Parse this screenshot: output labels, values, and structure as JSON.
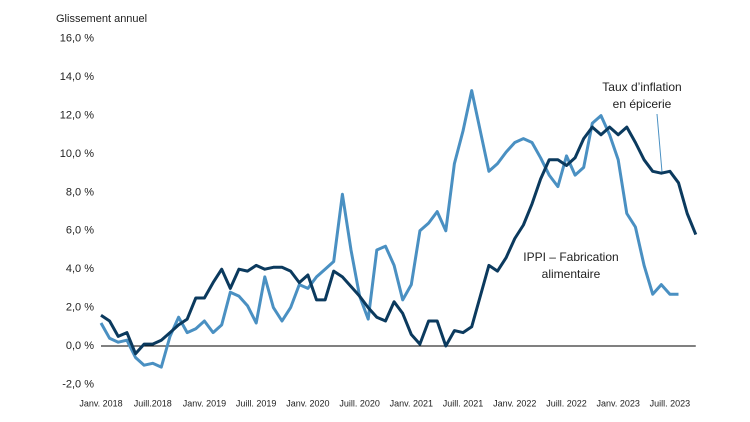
{
  "chart_data": {
    "type": "line",
    "y_axis_title": "Glissement annuel",
    "categories": [
      "Janv. 2018",
      null,
      null,
      null,
      null,
      null,
      "Juill.2018",
      null,
      null,
      null,
      null,
      null,
      "Janv. 2019",
      null,
      null,
      null,
      null,
      null,
      "Juill. 2019",
      null,
      null,
      null,
      null,
      null,
      "Janv. 2020",
      null,
      null,
      null,
      null,
      null,
      "Juill. 2020",
      null,
      null,
      null,
      null,
      null,
      "Janv. 2021",
      null,
      null,
      null,
      null,
      null,
      "Juill. 2021",
      null,
      null,
      null,
      null,
      null,
      "Janv. 2022",
      null,
      null,
      null,
      null,
      null,
      "Juill. 2022",
      null,
      null,
      null,
      null,
      null,
      "Janv. 2023",
      null,
      null,
      null,
      null,
      null,
      "Juill. 2023",
      null,
      null,
      null
    ],
    "series": [
      {
        "color": "#0b3a5e",
        "values": [
          1.6,
          1.3,
          0.5,
          0.7,
          -0.4,
          0.1,
          0.1,
          0.3,
          0.7,
          1.1,
          1.4,
          2.5,
          2.5,
          3.3,
          4.0,
          3.0,
          4.0,
          3.9,
          4.2,
          4.0,
          4.1,
          4.1,
          3.9,
          3.3,
          3.7,
          2.4,
          2.4,
          3.9,
          3.6,
          3.1,
          2.6,
          2.0,
          1.5,
          1.3,
          2.3,
          1.7,
          0.6,
          0.1,
          1.3,
          1.3,
          0.0,
          0.8,
          0.7,
          1.0,
          2.6,
          4.2,
          3.9,
          4.6,
          5.6,
          6.3,
          7.4,
          8.7,
          9.7,
          9.7,
          9.4,
          9.8,
          10.8,
          11.4,
          11.0,
          11.4,
          11.0,
          11.4,
          10.6,
          9.7,
          9.1,
          9.0,
          9.1,
          8.5,
          6.9,
          5.8
        ]
      },
      {
        "color": "#4a90c2",
        "values": [
          1.2,
          0.4,
          0.2,
          0.3,
          -0.6,
          -1.0,
          -0.9,
          -1.1,
          0.5,
          1.5,
          0.7,
          0.9,
          1.3,
          0.7,
          1.1,
          2.8,
          2.6,
          2.1,
          1.2,
          3.6,
          2.0,
          1.3,
          2.0,
          3.2,
          3.0,
          3.6,
          4.0,
          4.4,
          7.9,
          5.0,
          2.6,
          1.4,
          5.0,
          5.2,
          4.2,
          2.4,
          3.2,
          6.0,
          6.4,
          7.0,
          6.0,
          9.5,
          11.2,
          13.3,
          11.2,
          9.1,
          9.5,
          10.1,
          10.6,
          10.8,
          10.6,
          9.8,
          8.9,
          8.3,
          9.9,
          8.9,
          9.3,
          11.6,
          12.0,
          11.0,
          9.7,
          6.9,
          6.2,
          4.2,
          2.7,
          3.2,
          2.7,
          2.7,
          null,
          null
        ]
      }
    ],
    "annotations": [
      {
        "lines": [
          "Taux d’inflation",
          "en épicerie"
        ]
      },
      {
        "lines": [
          "IPPI – Fabrication",
          "alimentaire"
        ]
      }
    ],
    "ylim": [
      -2,
      16
    ],
    "yticks": [
      {
        "value": -2,
        "label": "-2,0 %"
      },
      {
        "value": 0,
        "label": "0,0 %"
      },
      {
        "value": 2,
        "label": "2,0 %"
      },
      {
        "value": 4,
        "label": "4,0 %"
      },
      {
        "value": 6,
        "label": "6,0 %"
      },
      {
        "value": 8,
        "label": "8,0 %"
      },
      {
        "value": 10,
        "label": "10,0 %"
      },
      {
        "value": 12,
        "label": "12,0 %"
      },
      {
        "value": 14,
        "label": "14,0 %"
      },
      {
        "value": 16,
        "label": "16,0 %"
      }
    ]
  }
}
